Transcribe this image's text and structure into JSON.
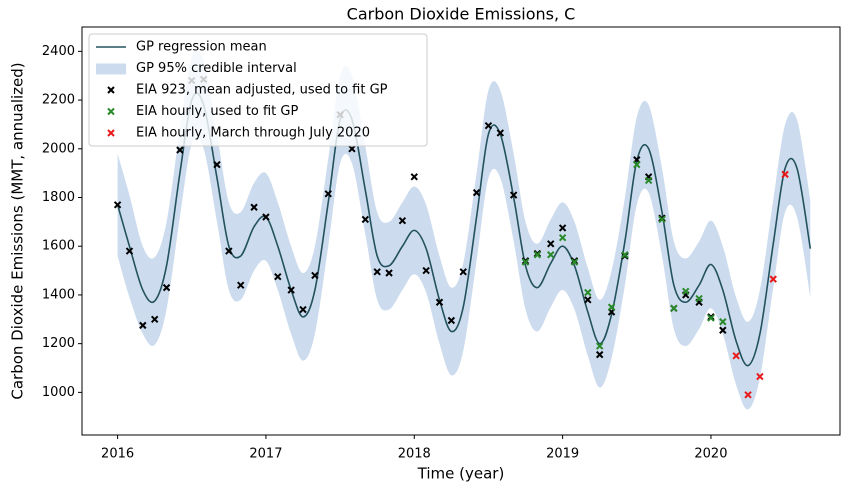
{
  "chart_data": {
    "type": "line",
    "title": "Carbon Dioxide Emissions, C",
    "x_label": "Time (year)",
    "y_label": "Carbon Dioxide Emissions (MMT, annualized)",
    "xlim": [
      2015.76,
      2020.87
    ],
    "ylim": [
      825,
      2500
    ],
    "xticks": [
      2016,
      2017,
      2018,
      2019,
      2020
    ],
    "yticks": [
      1000,
      1200,
      1400,
      1600,
      1800,
      2000,
      2200,
      2400
    ],
    "legend": "upper left",
    "x": [
      2016,
      2016.08,
      2016.17,
      2016.25,
      2016.33,
      2016.42,
      2016.5,
      2016.58,
      2016.67,
      2016.75,
      2016.83,
      2016.92,
      2017,
      2017.08,
      2017.17,
      2017.25,
      2017.33,
      2017.42,
      2017.5,
      2017.58,
      2017.67,
      2017.75,
      2017.83,
      2017.92,
      2018,
      2018.08,
      2018.17,
      2018.25,
      2018.33,
      2018.42,
      2018.5,
      2018.58,
      2018.67,
      2018.75,
      2018.83,
      2018.92,
      2019,
      2019.08,
      2019.17,
      2019.25,
      2019.33,
      2019.42,
      2019.5,
      2019.58,
      2019.67,
      2019.75,
      2019.83,
      2019.92,
      2020,
      2020.08,
      2020.17,
      2020.25,
      2020.33,
      2020.42,
      2020.5,
      2020.58,
      2020.67
    ],
    "series": [
      {
        "name": "GP regression mean",
        "color": "#23525e",
        "values": [
          1770,
          1600,
          1420,
          1375,
          1520,
          1900,
          2200,
          2180,
          1880,
          1600,
          1560,
          1680,
          1720,
          1600,
          1420,
          1310,
          1420,
          1780,
          2120,
          2120,
          1830,
          1560,
          1520,
          1600,
          1665,
          1590,
          1380,
          1250,
          1350,
          1720,
          2060,
          2060,
          1800,
          1520,
          1430,
          1530,
          1600,
          1520,
          1330,
          1200,
          1320,
          1620,
          1950,
          2000,
          1740,
          1440,
          1370,
          1440,
          1525,
          1420,
          1210,
          1110,
          1240,
          1610,
          1920,
          1920,
          1590
        ]
      },
      {
        "name": "GP 95% credible interval",
        "color": "#ccdcee",
        "upper": [
          1980,
          1810,
          1600,
          1555,
          1700,
          2080,
          2380,
          2360,
          2060,
          1780,
          1740,
          1860,
          1900,
          1780,
          1600,
          1490,
          1600,
          1960,
          2300,
          2300,
          2010,
          1740,
          1700,
          1780,
          1845,
          1770,
          1560,
          1430,
          1530,
          1900,
          2240,
          2240,
          1980,
          1700,
          1610,
          1710,
          1780,
          1700,
          1510,
          1380,
          1500,
          1800,
          2130,
          2180,
          1920,
          1620,
          1550,
          1620,
          1705,
          1600,
          1390,
          1290,
          1420,
          1790,
          2100,
          2120,
          1790
        ],
        "lower": [
          1560,
          1390,
          1240,
          1195,
          1340,
          1720,
          2020,
          2000,
          1700,
          1420,
          1380,
          1500,
          1540,
          1420,
          1240,
          1130,
          1240,
          1600,
          1940,
          1940,
          1650,
          1380,
          1340,
          1420,
          1485,
          1410,
          1200,
          1070,
          1170,
          1540,
          1880,
          1880,
          1620,
          1340,
          1250,
          1350,
          1420,
          1340,
          1150,
          1020,
          1140,
          1440,
          1770,
          1820,
          1560,
          1260,
          1190,
          1260,
          1345,
          1240,
          1030,
          930,
          1060,
          1430,
          1740,
          1720,
          1390
        ]
      },
      {
        "name": "EIA 923, mean adjusted, used to fit GP",
        "color": "#000000",
        "x": [
          2016,
          2016.08,
          2016.17,
          2016.25,
          2016.33,
          2016.42,
          2016.5,
          2016.58,
          2016.67,
          2016.75,
          2016.83,
          2016.92,
          2017,
          2017.08,
          2017.17,
          2017.25,
          2017.33,
          2017.42,
          2017.5,
          2017.58,
          2017.67,
          2017.75,
          2017.83,
          2017.92,
          2018,
          2018.08,
          2018.17,
          2018.25,
          2018.33,
          2018.42,
          2018.5,
          2018.58,
          2018.67,
          2018.75,
          2018.83,
          2018.92,
          2019,
          2019.08,
          2019.17,
          2019.25,
          2019.33,
          2019.42,
          2019.5,
          2019.58,
          2019.67,
          2019.75,
          2019.83,
          2019.92,
          2020,
          2020.08
        ],
        "values": [
          1770,
          1580,
          1275,
          1300,
          1430,
          1995,
          2280,
          2285,
          1935,
          1580,
          1440,
          1760,
          1720,
          1475,
          1420,
          1340,
          1480,
          1815,
          2140,
          2000,
          1710,
          1495,
          1490,
          1705,
          1885,
          1500,
          1370,
          1295,
          1495,
          1820,
          2095,
          2065,
          1810,
          1540,
          1570,
          1610,
          1675,
          1540,
          1380,
          1155,
          1330,
          1560,
          1955,
          1885,
          1715,
          1345,
          1400,
          1370,
          1310,
          1255
        ]
      },
      {
        "name": "EIA hourly, used to fit GP",
        "color": "#2a8a2a",
        "x": [
          2018.75,
          2018.83,
          2018.92,
          2019,
          2019.08,
          2019.17,
          2019.25,
          2019.33,
          2019.42,
          2019.5,
          2019.58,
          2019.67,
          2019.75,
          2019.83,
          2019.92,
          2020,
          2020.08
        ],
        "values": [
          1535,
          1565,
          1565,
          1635,
          1535,
          1410,
          1190,
          1350,
          1565,
          1935,
          1870,
          1710,
          1345,
          1415,
          1385,
          1305,
          1290
        ]
      },
      {
        "name": "EIA hourly, March through July 2020",
        "color": "#e8191a",
        "x": [
          2020.17,
          2020.25,
          2020.33,
          2020.42,
          2020.5
        ],
        "values": [
          1150,
          990,
          1065,
          1465,
          1895
        ]
      }
    ]
  }
}
